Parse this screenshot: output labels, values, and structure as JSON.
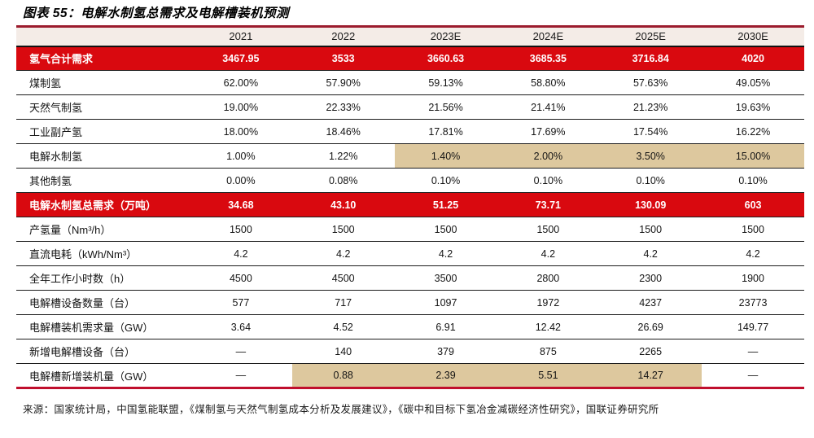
{
  "title": "图表 55：电解水制氢总需求及电解槽装机预测",
  "source": "来源：国家统计局，中国氢能联盟，《煤制氢与天然气制氢成本分析及发展建议》，《碳中和目标下氢冶金减碳经济性研究》，国联证券研究所",
  "colors": {
    "accent_red": "#d9090f",
    "header_bg": "#f4ece7",
    "highlight_bg": "#ddc89e",
    "border_top": "#9b1b2d",
    "border_bottom": "#c00f2d"
  },
  "table": {
    "columns": [
      "",
      "2021",
      "2022",
      "2023E",
      "2024E",
      "2025E",
      "2030E"
    ],
    "rows": [
      {
        "label": "氢气合计需求",
        "style": "red",
        "highlight": [],
        "values": [
          "3467.95",
          "3533",
          "3660.63",
          "3685.35",
          "3716.84",
          "4020"
        ]
      },
      {
        "label": "煤制氢",
        "style": "normal",
        "highlight": [],
        "values": [
          "62.00%",
          "57.90%",
          "59.13%",
          "58.80%",
          "57.63%",
          "49.05%"
        ]
      },
      {
        "label": "天然气制氢",
        "style": "normal",
        "highlight": [],
        "values": [
          "19.00%",
          "22.33%",
          "21.56%",
          "21.41%",
          "21.23%",
          "19.63%"
        ]
      },
      {
        "label": "工业副产氢",
        "style": "normal",
        "highlight": [],
        "values": [
          "18.00%",
          "18.46%",
          "17.81%",
          "17.69%",
          "17.54%",
          "16.22%"
        ]
      },
      {
        "label": "电解水制氢",
        "style": "normal",
        "highlight": [
          2,
          3,
          4,
          5
        ],
        "values": [
          "1.00%",
          "1.22%",
          "1.40%",
          "2.00%",
          "3.50%",
          "15.00%"
        ]
      },
      {
        "label": "其他制氢",
        "style": "normal",
        "highlight": [],
        "values": [
          "0.00%",
          "0.08%",
          "0.10%",
          "0.10%",
          "0.10%",
          "0.10%"
        ]
      },
      {
        "label": "电解水制氢总需求（万吨）",
        "style": "red",
        "highlight": [],
        "values": [
          "34.68",
          "43.10",
          "51.25",
          "73.71",
          "130.09",
          "603"
        ]
      },
      {
        "label": "产氢量（Nm³/h）",
        "style": "normal",
        "highlight": [],
        "values": [
          "1500",
          "1500",
          "1500",
          "1500",
          "1500",
          "1500"
        ]
      },
      {
        "label": "直流电耗（kWh/Nm³）",
        "style": "normal",
        "highlight": [],
        "values": [
          "4.2",
          "4.2",
          "4.2",
          "4.2",
          "4.2",
          "4.2"
        ]
      },
      {
        "label": "全年工作小时数（h）",
        "style": "normal",
        "highlight": [],
        "values": [
          "4500",
          "4500",
          "3500",
          "2800",
          "2300",
          "1900"
        ]
      },
      {
        "label": "电解槽设备数量（台）",
        "style": "normal",
        "highlight": [],
        "values": [
          "577",
          "717",
          "1097",
          "1972",
          "4237",
          "23773"
        ]
      },
      {
        "label": "电解槽装机需求量（GW）",
        "style": "normal",
        "highlight": [],
        "values": [
          "3.64",
          "4.52",
          "6.91",
          "12.42",
          "26.69",
          "149.77"
        ]
      },
      {
        "label": "新增电解槽设备（台）",
        "style": "normal",
        "highlight": [],
        "values": [
          "—",
          "140",
          "379",
          "875",
          "2265",
          "—"
        ]
      },
      {
        "label": "电解槽新增装机量（GW）",
        "style": "normal",
        "highlight": [
          1,
          2,
          3,
          4
        ],
        "values": [
          "—",
          "0.88",
          "2.39",
          "5.51",
          "14.27",
          "—"
        ]
      }
    ]
  }
}
